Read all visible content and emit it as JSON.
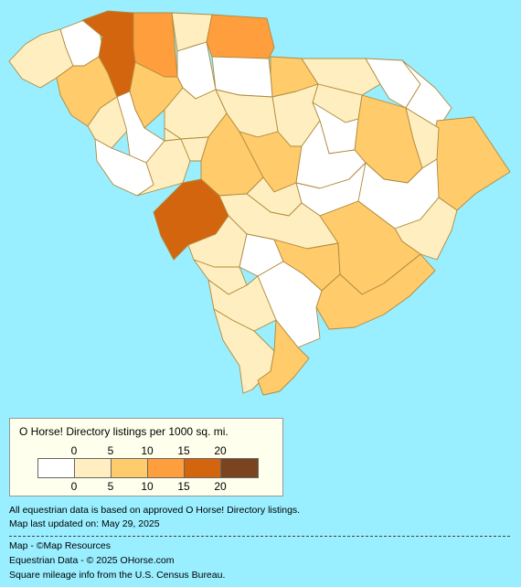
{
  "map": {
    "colors": {
      "ocean": "#99eeff",
      "border": "#b08a3c",
      "c0": "#ffffff",
      "c1": "#ffefc0",
      "c2": "#ffcb6b",
      "c3": "#ff9e3c",
      "c4": "#d3650e",
      "c5": "#7a4420"
    }
  },
  "legend": {
    "title": "O Horse! Directory listings per 1000 sq. mi.",
    "ticks": [
      "0",
      "5",
      "10",
      "15",
      "20"
    ],
    "colors": [
      "#ffffff",
      "#ffefc0",
      "#ffcb6b",
      "#ff9e3c",
      "#d3650e",
      "#7a4420"
    ]
  },
  "notes": {
    "line1": "All equestrian data is based on approved O Horse! Directory listings.",
    "line2": "Map last updated on: May 29, 2025"
  },
  "credits": {
    "map": "Map - ©Map Resources",
    "equestrian": "Equestrian Data - © 2025 OHorse.com",
    "census": "Square mileage info from the U.S. Census Bureau."
  }
}
